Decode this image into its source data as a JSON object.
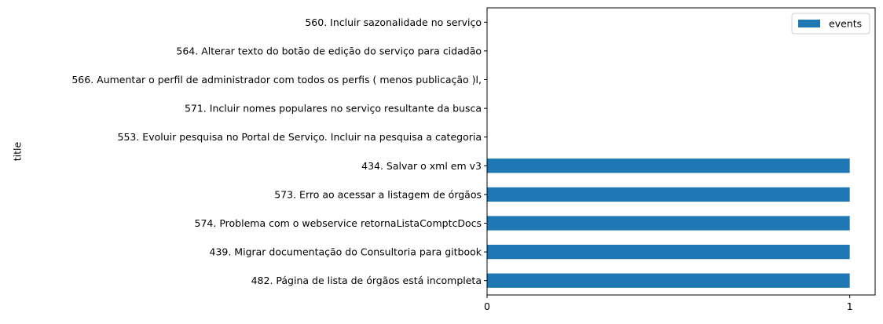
{
  "chart_data": {
    "type": "bar",
    "orientation": "horizontal",
    "ylabel": "title",
    "xlabel": "",
    "xlim": [
      0,
      1.07
    ],
    "xticks": [
      0,
      1
    ],
    "categories": [
      "482. Página de lista de órgãos está incompleta",
      "439. Migrar documentação do Consultoria para gitbook",
      "574. Problema com o webservice retornaListaComptcDocs",
      "573. Erro ao acessar a listagem de órgãos",
      "434. Salvar o xml em v3",
      "553. Evoluir pesquisa no Portal de Serviço. Incluir na pesquisa a categoria",
      "571. Incluir nomes populares no serviço resultante da busca",
      "566. Aumentar o perfil de administrador com todos os perfis ( menos publicação )l,",
      "564. Alterar texto do botão de edição do serviço para cidadão",
      "560. Incluir sazonalidade no serviço"
    ],
    "series": [
      {
        "name": "events",
        "color": "#1f77b4",
        "values": [
          1,
          1,
          1,
          1,
          1,
          0,
          0,
          0,
          0,
          0
        ]
      }
    ],
    "legend": "top-right",
    "grid": false
  }
}
